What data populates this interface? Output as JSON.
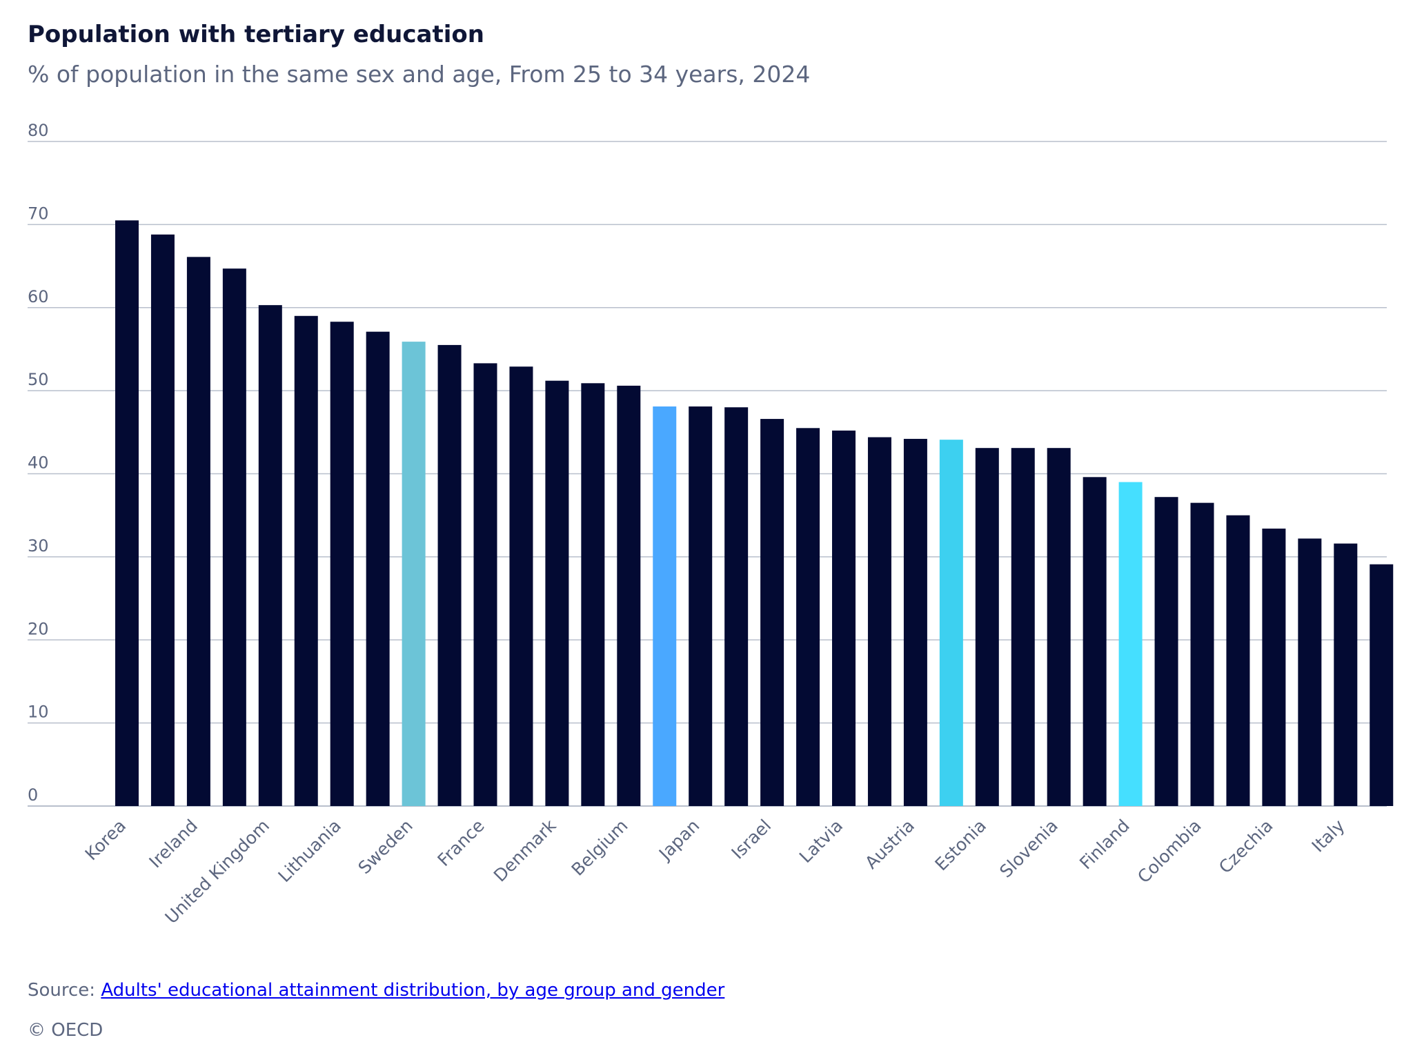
{
  "header": {
    "title": "Population with tertiary education",
    "subtitle": "% of population in the same sex and age, From 25 to 34 years, 2024"
  },
  "colors": {
    "default_bar": "#030a33",
    "gridline": "#b8bfcc",
    "axis_text": "#5c667f",
    "highlights": {
      "Sweden": "#6cc4d7",
      "OECD": "#4aa8ff",
      "Estonia": "#3dd0f0",
      "Finland": "#45dfff"
    }
  },
  "chart_data": {
    "type": "bar",
    "title": "Population with tertiary education",
    "subtitle": "% of population in the same sex and age, From 25 to 34 years, 2024",
    "xlabel": "",
    "ylabel": "",
    "ylim": [
      0,
      80
    ],
    "yticks": [
      0,
      10,
      20,
      30,
      40,
      50,
      60,
      70,
      80
    ],
    "grid": true,
    "categories": [
      "Korea",
      "",
      "Ireland",
      "",
      "United Kingdom",
      "",
      "Lithuania",
      "",
      "Sweden",
      "",
      "France",
      "",
      "Denmark",
      "",
      "Belgium",
      "",
      "Japan",
      "",
      "Israel",
      "",
      "Latvia",
      "",
      "Austria",
      "",
      "Estonia",
      "",
      "Slovenia",
      "",
      "Finland",
      "",
      "Colombia",
      "",
      "Czechia",
      "",
      "Italy",
      ""
    ],
    "values": [
      70.5,
      68.8,
      66.1,
      64.7,
      60.3,
      59.0,
      58.3,
      57.1,
      55.9,
      55.5,
      53.3,
      52.9,
      51.2,
      50.9,
      50.6,
      48.1,
      48.1,
      48.0,
      46.6,
      45.5,
      45.2,
      44.4,
      44.2,
      44.1,
      43.1,
      43.1,
      43.1,
      39.6,
      39.0,
      37.2,
      36.5,
      35.0,
      33.4,
      32.2,
      31.6,
      29.1
    ],
    "highlight_index": {
      "8": "Sweden",
      "15": "OECD",
      "23": "Estonia",
      "28": "Finland"
    }
  },
  "footer": {
    "source_label": "Source: ",
    "source_link": "Adults' educational attainment distribution, by age group and gender",
    "copyright": "© OECD"
  }
}
